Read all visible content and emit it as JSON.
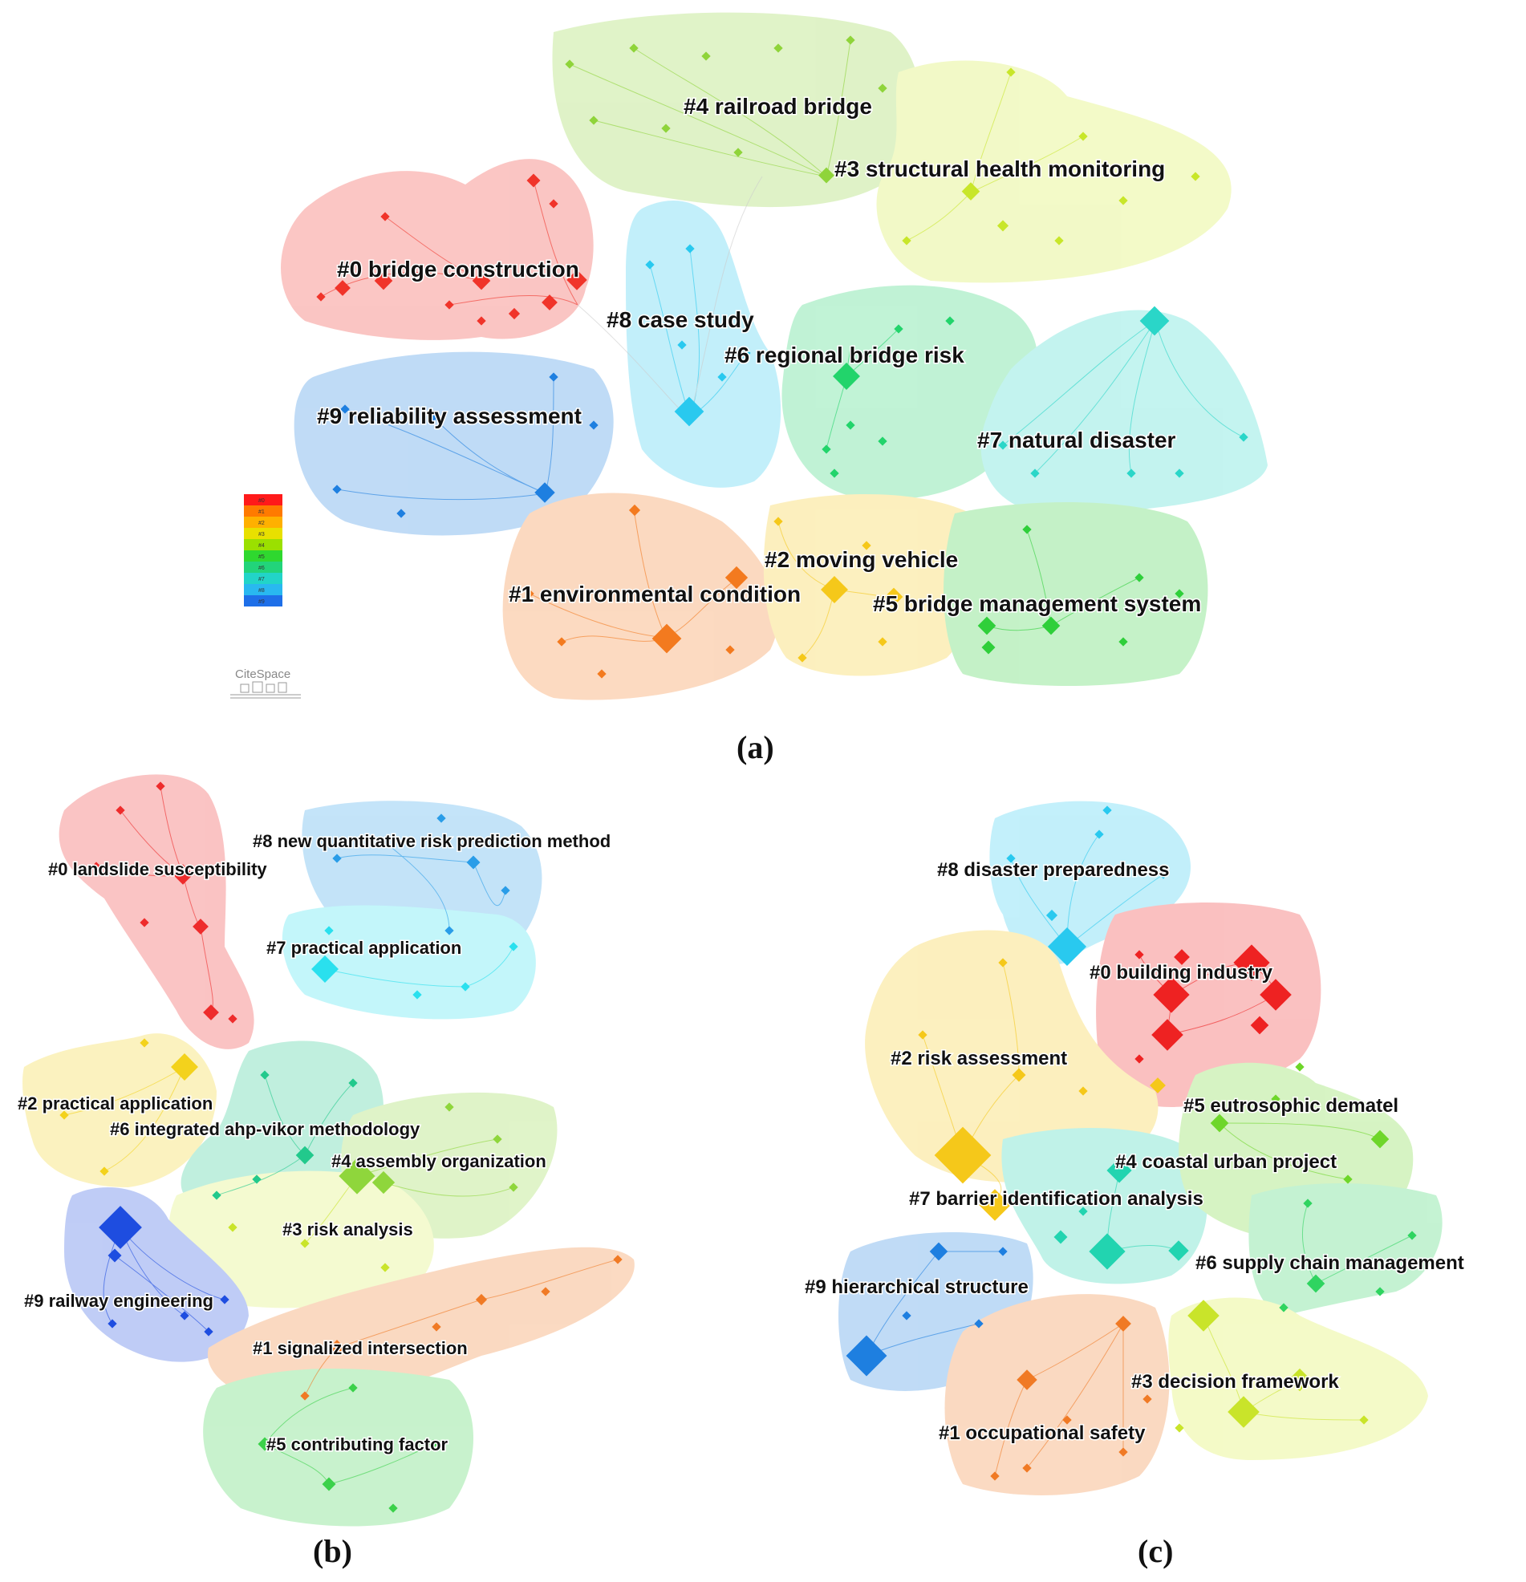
{
  "panels": [
    {
      "id": "a",
      "caption": "(a)",
      "clusters": [
        {
          "label": "#0 bridge construction",
          "color": "#f0342a"
        },
        {
          "label": "#1 environmental condition",
          "color": "#f37a1f"
        },
        {
          "label": "#2 moving vehicle",
          "color": "#f5c81a"
        },
        {
          "label": "#3 structural health monitoring",
          "color": "#c8e62a"
        },
        {
          "label": "#4 railroad bridge",
          "color": "#8fd43a"
        },
        {
          "label": "#5 bridge management system",
          "color": "#2fcf3a"
        },
        {
          "label": "#6 regional bridge risk",
          "color": "#22d46b"
        },
        {
          "label": "#7 natural disaster",
          "color": "#2ad6c8"
        },
        {
          "label": "#8 case study",
          "color": "#29c9ef"
        },
        {
          "label": "#9 reliability assessment",
          "color": "#1e7fe0"
        }
      ]
    },
    {
      "id": "b",
      "caption": "(b)",
      "clusters": [
        {
          "label": "#0 landslide susceptibility",
          "color": "#ee2c2c"
        },
        {
          "label": "#1 signalized intersection",
          "color": "#f07a25"
        },
        {
          "label": "#2 practical application",
          "color": "#f3d21c"
        },
        {
          "label": "#3 risk analysis",
          "color": "#c9e42a"
        },
        {
          "label": "#4 assembly organization",
          "color": "#8fd63c"
        },
        {
          "label": "#5 contributing factor",
          "color": "#3bd14a"
        },
        {
          "label": "#6 integrated ahp-vikor methodology",
          "color": "#22c98c"
        },
        {
          "label": "#7 practical application",
          "color": "#2ae0ee"
        },
        {
          "label": "#8 new quantitative risk prediction method",
          "color": "#2a9de8"
        },
        {
          "label": "#9 railway engineering",
          "color": "#1e4de0"
        }
      ]
    },
    {
      "id": "c",
      "caption": "(c)",
      "clusters": [
        {
          "label": "#0 building industry",
          "color": "#ee2222"
        },
        {
          "label": "#1 occupational safety",
          "color": "#f07a25"
        },
        {
          "label": "#2 risk assessment",
          "color": "#f5c81a"
        },
        {
          "label": "#3 decision framework",
          "color": "#c9e42a"
        },
        {
          "label": "#4 coastal urban project",
          "color": "#22d4b0"
        },
        {
          "label": "#5 eutrosophic dematel",
          "color": "#6ed62a"
        },
        {
          "label": "#6 supply chain management",
          "color": "#2fd460"
        },
        {
          "label": "#7 barrier identification analysis",
          "color": "#f5c81a"
        },
        {
          "label": "#8 disaster preparedness",
          "color": "#29c9ef"
        },
        {
          "label": "#9 hierarchical structure",
          "color": "#1e7fe0"
        }
      ]
    }
  ],
  "legend": {
    "items": [
      "#0",
      "#1",
      "#2",
      "#3",
      "#4",
      "#5",
      "#6",
      "#7",
      "#8",
      "#9"
    ],
    "colors": [
      "#ff1a1a",
      "#ff7a00",
      "#ffb000",
      "#e8e000",
      "#9be000",
      "#2fd82f",
      "#22d47a",
      "#22d4c8",
      "#29b8f0",
      "#1e6fe8"
    ]
  },
  "logo": {
    "text": "CiteSpace"
  }
}
